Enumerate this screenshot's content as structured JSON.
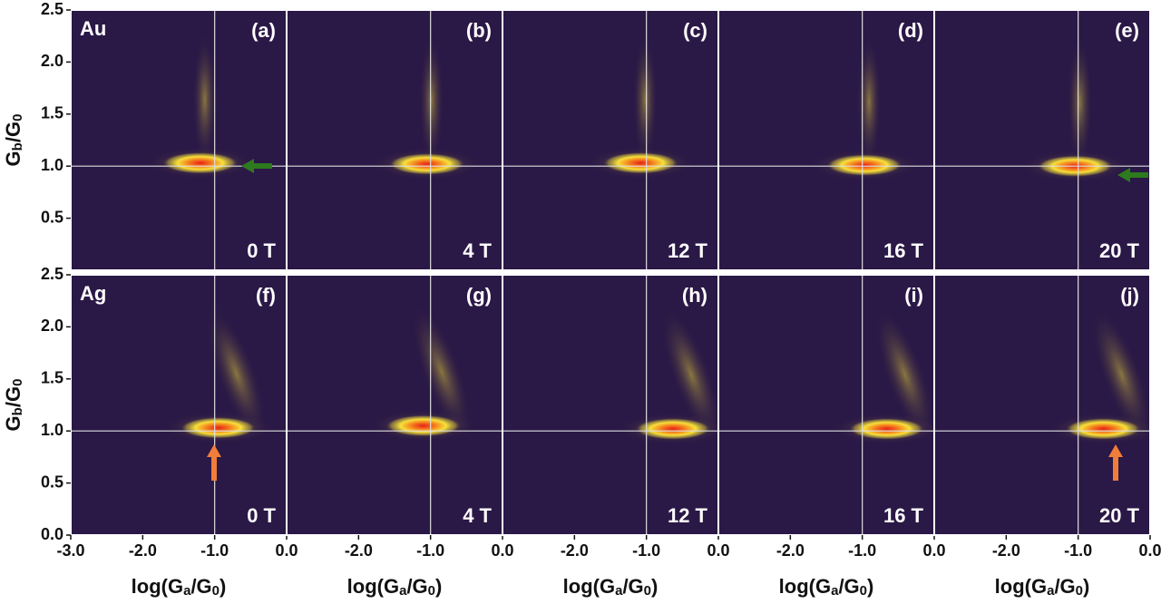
{
  "chart_data": [
    {
      "type": "heatmap",
      "material": "Au",
      "panel": "(a)",
      "field": "0 T",
      "xlim": [
        -3,
        0
      ],
      "ylim": [
        0,
        2.5
      ],
      "yticks": [
        {
          "value": 0.5,
          "label": "0.5"
        },
        {
          "value": 1,
          "label": "1.0"
        },
        {
          "value": 1.5,
          "label": "1.5"
        },
        {
          "value": 2,
          "label": "2.0"
        },
        {
          "value": 2.5,
          "label": "2.5"
        }
      ],
      "ylabel": [
        "G",
        "b",
        "/G",
        "0"
      ],
      "ref_x": -1,
      "ref_y": 1,
      "peak_x": -1.2,
      "peak_y": 1.03
    },
    {
      "type": "heatmap",
      "panel": "(b)",
      "field": "4 T",
      "xlim": [
        -3,
        0
      ],
      "ylim": [
        0,
        2.5
      ],
      "ref_x": -1,
      "ref_y": 1,
      "peak_x": -1.05,
      "peak_y": 1.02
    },
    {
      "type": "heatmap",
      "panel": "(c)",
      "field": "12 T",
      "xlim": [
        -3,
        0
      ],
      "ylim": [
        0,
        2.5
      ],
      "ref_x": -1,
      "ref_y": 1,
      "peak_x": -1.08,
      "peak_y": 1.03
    },
    {
      "type": "heatmap",
      "panel": "(d)",
      "field": "16 T",
      "xlim": [
        -3,
        0
      ],
      "ylim": [
        0,
        2.5
      ],
      "ref_x": -1,
      "ref_y": 1,
      "peak_x": -0.97,
      "peak_y": 1.01
    },
    {
      "type": "heatmap",
      "panel": "(e)",
      "field": "20 T",
      "xlim": [
        -3,
        0
      ],
      "ylim": [
        0,
        2.5
      ],
      "ref_x": -1,
      "ref_y": 1,
      "peak_x": -1.04,
      "peak_y": 1.0
    },
    {
      "type": "heatmap",
      "material": "Ag",
      "panel": "(f)",
      "field": "0 T",
      "xlim": [
        -3,
        0
      ],
      "ylim": [
        0,
        2.5
      ],
      "yticks": [
        {
          "value": 0,
          "label": "0.0"
        },
        {
          "value": 0.5,
          "label": "0.5"
        },
        {
          "value": 1,
          "label": "1.0"
        },
        {
          "value": 1.5,
          "label": "1.5"
        },
        {
          "value": 2,
          "label": "2.0"
        },
        {
          "value": 2.5,
          "label": "2.5"
        }
      ],
      "ylabel": [
        "G",
        "b",
        "/G",
        "0"
      ],
      "xticks": [
        {
          "value": -3,
          "label": "-3.0"
        },
        {
          "value": -2,
          "label": "-2.0"
        },
        {
          "value": -1,
          "label": "-1.0"
        },
        {
          "value": 0,
          "label": "0.0"
        }
      ],
      "xlabel": [
        "log(G",
        "a",
        "/G",
        "0",
        ")"
      ],
      "ref_x": -1,
      "ref_y": 1,
      "peak_x": -0.95,
      "peak_y": 1.03
    },
    {
      "type": "heatmap",
      "panel": "(g)",
      "field": "4 T",
      "xlim": [
        -3,
        0
      ],
      "ylim": [
        0,
        2.5
      ],
      "xticks": [
        {
          "value": -2,
          "label": "-2.0"
        },
        {
          "value": -1,
          "label": "-1.0"
        },
        {
          "value": 0,
          "label": "0.0"
        }
      ],
      "xlabel": [
        "log(G",
        "a",
        "/G",
        "0",
        ")"
      ],
      "ref_x": -1,
      "ref_y": 1,
      "peak_x": -1.1,
      "peak_y": 1.05
    },
    {
      "type": "heatmap",
      "panel": "(h)",
      "field": "12 T",
      "xlim": [
        -3,
        0
      ],
      "ylim": [
        0,
        2.5
      ],
      "xticks": [
        {
          "value": -2,
          "label": "-2.0"
        },
        {
          "value": -1,
          "label": "-1.0"
        },
        {
          "value": 0,
          "label": "0.0"
        }
      ],
      "xlabel": [
        "log(G",
        "a",
        "/G",
        "0",
        ")"
      ],
      "ref_x": -1,
      "ref_y": 1,
      "peak_x": -0.63,
      "peak_y": 1.02
    },
    {
      "type": "heatmap",
      "panel": "(i)",
      "field": "16 T",
      "xlim": [
        -3,
        0
      ],
      "ylim": [
        0,
        2.5
      ],
      "xticks": [
        {
          "value": -2,
          "label": "-2.0"
        },
        {
          "value": -1,
          "label": "-1.0"
        },
        {
          "value": 0,
          "label": "0.0"
        }
      ],
      "xlabel": [
        "log(G",
        "a",
        "/G",
        "0",
        ")"
      ],
      "ref_x": -1,
      "ref_y": 1,
      "peak_x": -0.66,
      "peak_y": 1.02
    },
    {
      "type": "heatmap",
      "panel": "(j)",
      "field": "20 T",
      "xlim": [
        -3,
        0
      ],
      "ylim": [
        0,
        2.5
      ],
      "xticks": [
        {
          "value": -2,
          "label": "-2.0"
        },
        {
          "value": -1,
          "label": "-1.0"
        },
        {
          "value": 0,
          "label": "0.0"
        }
      ],
      "xlabel": [
        "log(G",
        "a",
        "/G",
        "0",
        ")"
      ],
      "ref_x": -1,
      "ref_y": 1,
      "peak_x": -0.65,
      "peak_y": 1.02
    }
  ]
}
